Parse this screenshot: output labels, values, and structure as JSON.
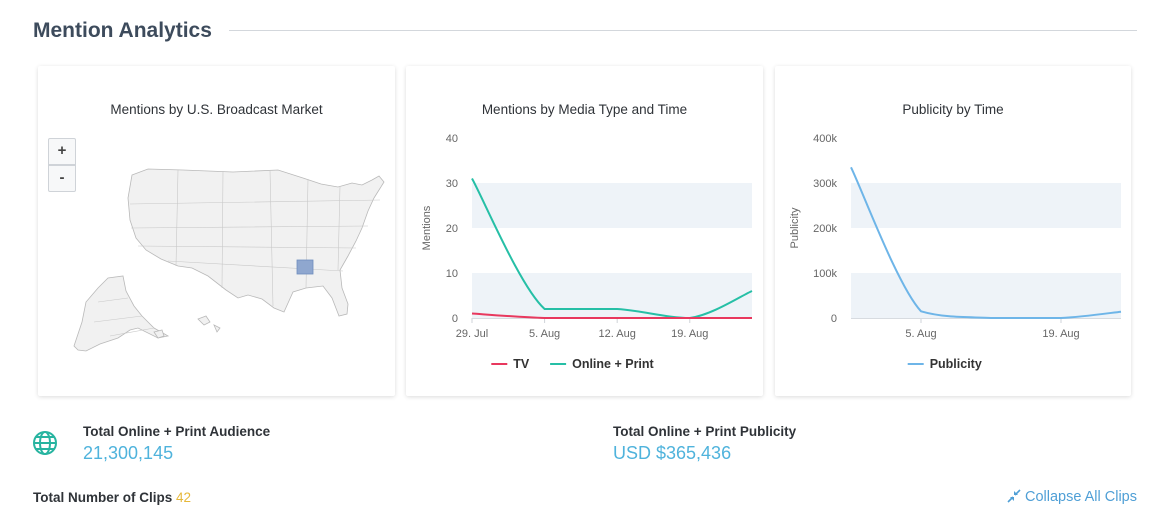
{
  "section": {
    "title": "Mention Analytics"
  },
  "map_card": {
    "title": "Mentions by U.S. Broadcast Market",
    "zoom_in_label": "+",
    "zoom_out_label": "-",
    "highlight_color": "#8fa7cf"
  },
  "charts": {
    "media": {
      "title": "Mentions by Media Type and Time",
      "legend": [
        "TV",
        "Online + Print"
      ]
    },
    "publicity": {
      "title": "Publicity by Time",
      "legend": [
        "Publicity"
      ]
    }
  },
  "chart_data": [
    {
      "type": "line",
      "title": "Mentions by Media Type and Time",
      "ylabel": "Mentions",
      "ylim": [
        0,
        40
      ],
      "yticks": [
        "0",
        "10",
        "20",
        "30",
        "40"
      ],
      "x_range": [
        "2019-07-29",
        "2019-08-25"
      ],
      "xticks": [
        "29. Jul",
        "5. Aug",
        "12. Aug",
        "19. Aug"
      ],
      "series": [
        {
          "name": "TV",
          "color": "#e8385e",
          "points": [
            [
              "2019-07-29",
              1
            ],
            [
              "2019-08-05",
              0
            ],
            [
              "2019-08-12",
              0
            ],
            [
              "2019-08-19",
              0
            ],
            [
              "2019-08-25",
              0
            ]
          ]
        },
        {
          "name": "Online + Print",
          "color": "#26bfa6",
          "points": [
            [
              "2019-07-29",
              31
            ],
            [
              "2019-08-05",
              2
            ],
            [
              "2019-08-12",
              2
            ],
            [
              "2019-08-19",
              0
            ],
            [
              "2019-08-25",
              6
            ]
          ]
        }
      ],
      "bands": [
        [
          20,
          30
        ],
        [
          0,
          10
        ]
      ]
    },
    {
      "type": "line",
      "title": "Publicity by Time",
      "ylabel": "Publicity",
      "ylim": [
        0,
        400000
      ],
      "yticks": [
        "0",
        "100k",
        "200k",
        "300k",
        "400k"
      ],
      "x_range": [
        "2019-07-29",
        "2019-08-25"
      ],
      "xticks": [
        "5. Aug",
        "19. Aug"
      ],
      "series": [
        {
          "name": "Publicity",
          "color": "#6eb5e8",
          "points": [
            [
              "2019-07-29",
              335000
            ],
            [
              "2019-08-05",
              15000
            ],
            [
              "2019-08-12",
              0
            ],
            [
              "2019-08-19",
              0
            ],
            [
              "2019-08-25",
              14000
            ]
          ]
        }
      ],
      "bands": [
        [
          200000,
          300000
        ],
        [
          0,
          100000
        ]
      ]
    }
  ],
  "stats": {
    "audience_label": "Total Online + Print Audience",
    "audience_value": "21,300,145",
    "publicity_label": "Total Online + Print Publicity",
    "publicity_value": "USD $365,436"
  },
  "clips": {
    "label": "Total Number of Clips",
    "count": "42"
  },
  "collapse": {
    "label": "Collapse All Clips"
  },
  "icons": {
    "audience": "globe-icon",
    "collapse": "collapse-arrows-icon"
  }
}
